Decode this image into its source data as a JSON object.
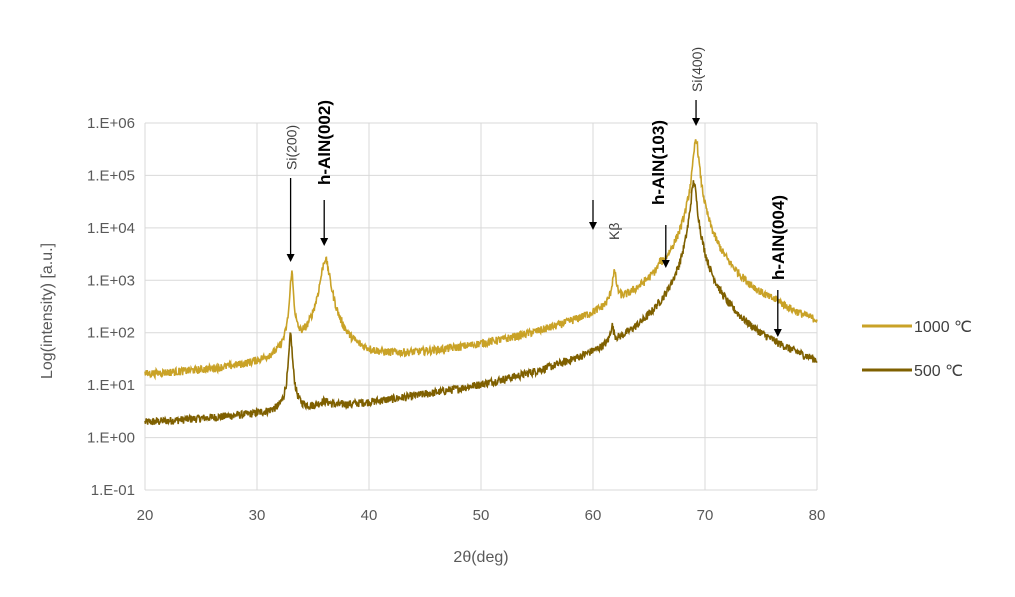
{
  "chart_data": {
    "type": "line",
    "title": "",
    "xlabel": "2θ(deg)",
    "ylabel": "Log(intensity) [a.u.]",
    "xlim": [
      20,
      80
    ],
    "ylim": [
      0.1,
      1000000
    ],
    "yscale": "log",
    "grid": {
      "x": true,
      "y": true
    },
    "x_ticks": [
      "20",
      "30",
      "40",
      "50",
      "60",
      "70",
      "80"
    ],
    "y_ticks": [
      "1.E-01",
      "1.E+00",
      "1.E+01",
      "1.E+02",
      "1.E+03",
      "1.E+04",
      "1.E+05",
      "1.E+06"
    ],
    "legend_position": "right",
    "series": [
      {
        "name": "1000 ℃",
        "color": "#C9A227",
        "baseline": 7,
        "peaks": [
          {
            "x": 33.1,
            "y": 1400,
            "w": 0.12
          },
          {
            "x": 36.1,
            "y": 2500,
            "w": 0.35
          },
          {
            "x": 61.9,
            "y": 1100,
            "w": 0.18
          },
          {
            "x": 66.0,
            "y": 450,
            "w": 0.12
          },
          {
            "x": 69.2,
            "y": 500000,
            "w": 0.2
          },
          {
            "x": 76.5,
            "y": 45,
            "w": 0.4
          }
        ]
      },
      {
        "name": "500 ℃",
        "color": "#7F6000",
        "baseline": 0.45,
        "peaks": [
          {
            "x": 33.0,
            "y": 90,
            "w": 0.12
          },
          {
            "x": 36.0,
            "y": 1.5,
            "w": 0.6
          },
          {
            "x": 61.7,
            "y": 70,
            "w": 0.15
          },
          {
            "x": 65.7,
            "y": 11,
            "w": 0.1
          },
          {
            "x": 69.0,
            "y": 75000,
            "w": 0.22
          }
        ]
      }
    ],
    "annotations": [
      {
        "text": "Si(200)",
        "x": 33.0,
        "style": "thin"
      },
      {
        "text": "h-AlN(002)",
        "x": 36.0,
        "style": "bold"
      },
      {
        "text": "Kβ",
        "x": 60.0,
        "style": "thin"
      },
      {
        "text": "h-AlN(103)",
        "x": 66.5,
        "style": "bold"
      },
      {
        "text": "Si(400)",
        "x": 69.2,
        "style": "thin"
      },
      {
        "text": "h-AlN(004)",
        "x": 76.5,
        "style": "bold"
      }
    ]
  }
}
